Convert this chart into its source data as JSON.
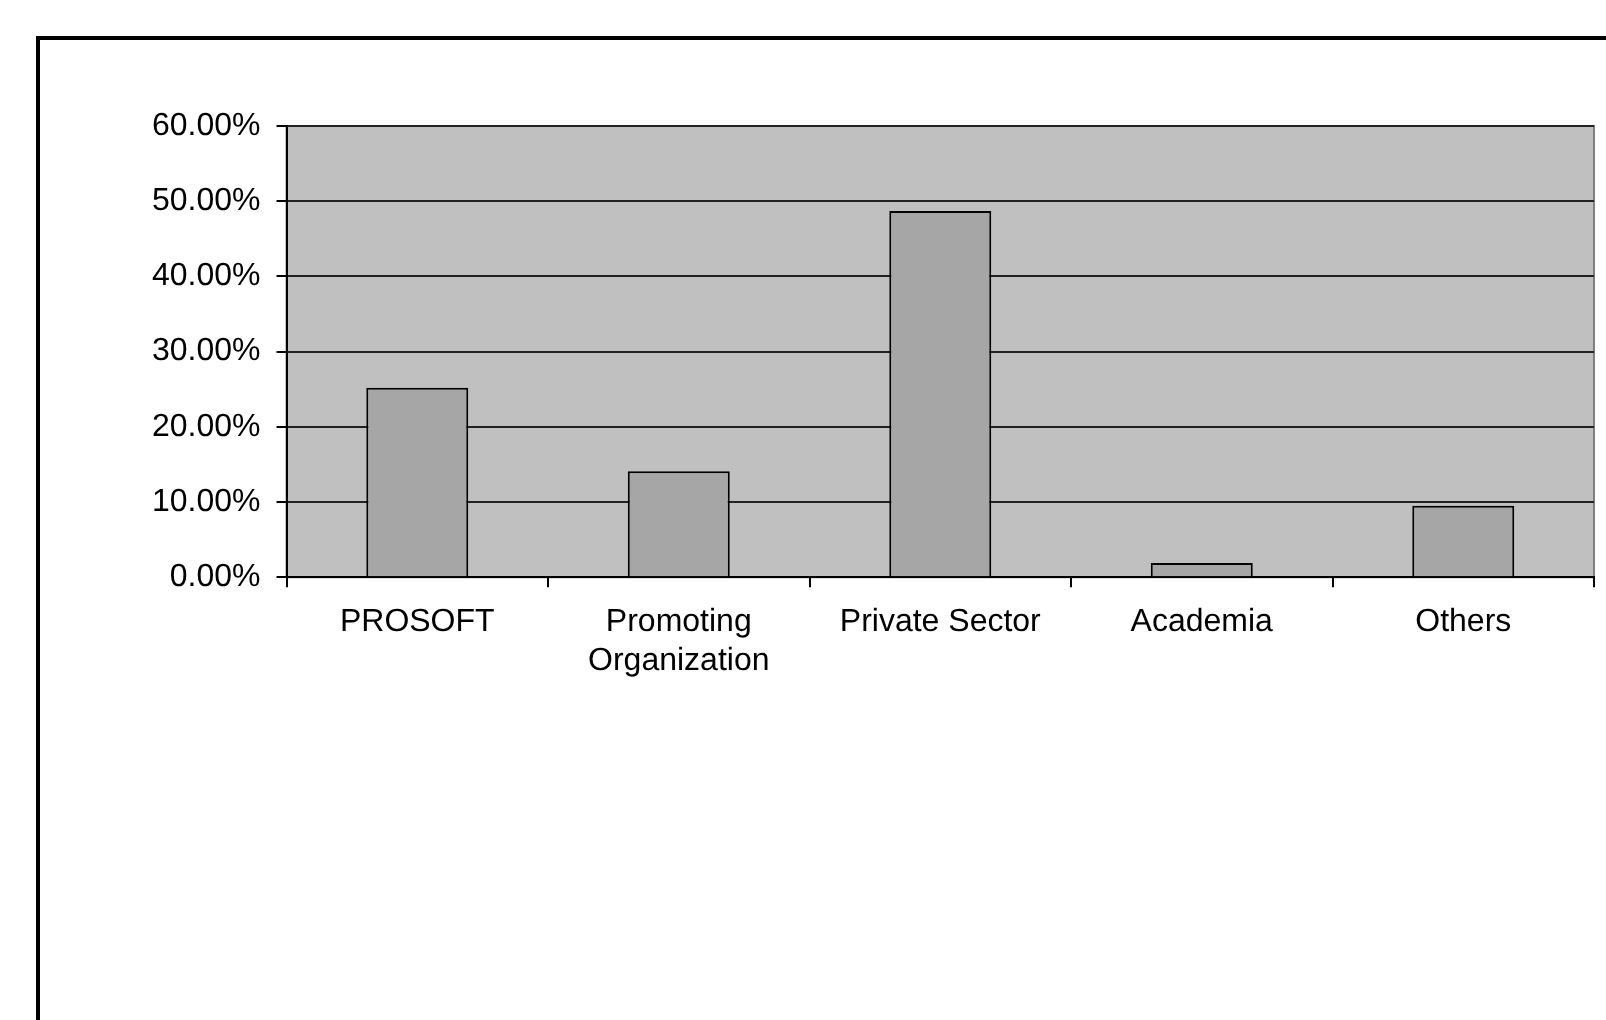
{
  "chart_data": {
    "type": "bar",
    "categories": [
      "PROSOFT",
      "Promoting Organization",
      "Private Sector",
      "Academia",
      "Others"
    ],
    "values": [
      25.2,
      14.1,
      48.7,
      1.9,
      9.5
    ],
    "color": "#a6a6a6",
    "ylim": [
      0,
      60
    ],
    "yticks": [
      {
        "value": 0,
        "label": "0.00%"
      },
      {
        "value": 10,
        "label": "10.00%"
      },
      {
        "value": 20,
        "label": "20.00%"
      },
      {
        "value": 30,
        "label": "30.00%"
      },
      {
        "value": 40,
        "label": "40.00%"
      },
      {
        "value": 50,
        "label": "50.00%"
      },
      {
        "value": 60,
        "label": "60.00%"
      }
    ],
    "grid": "y"
  }
}
